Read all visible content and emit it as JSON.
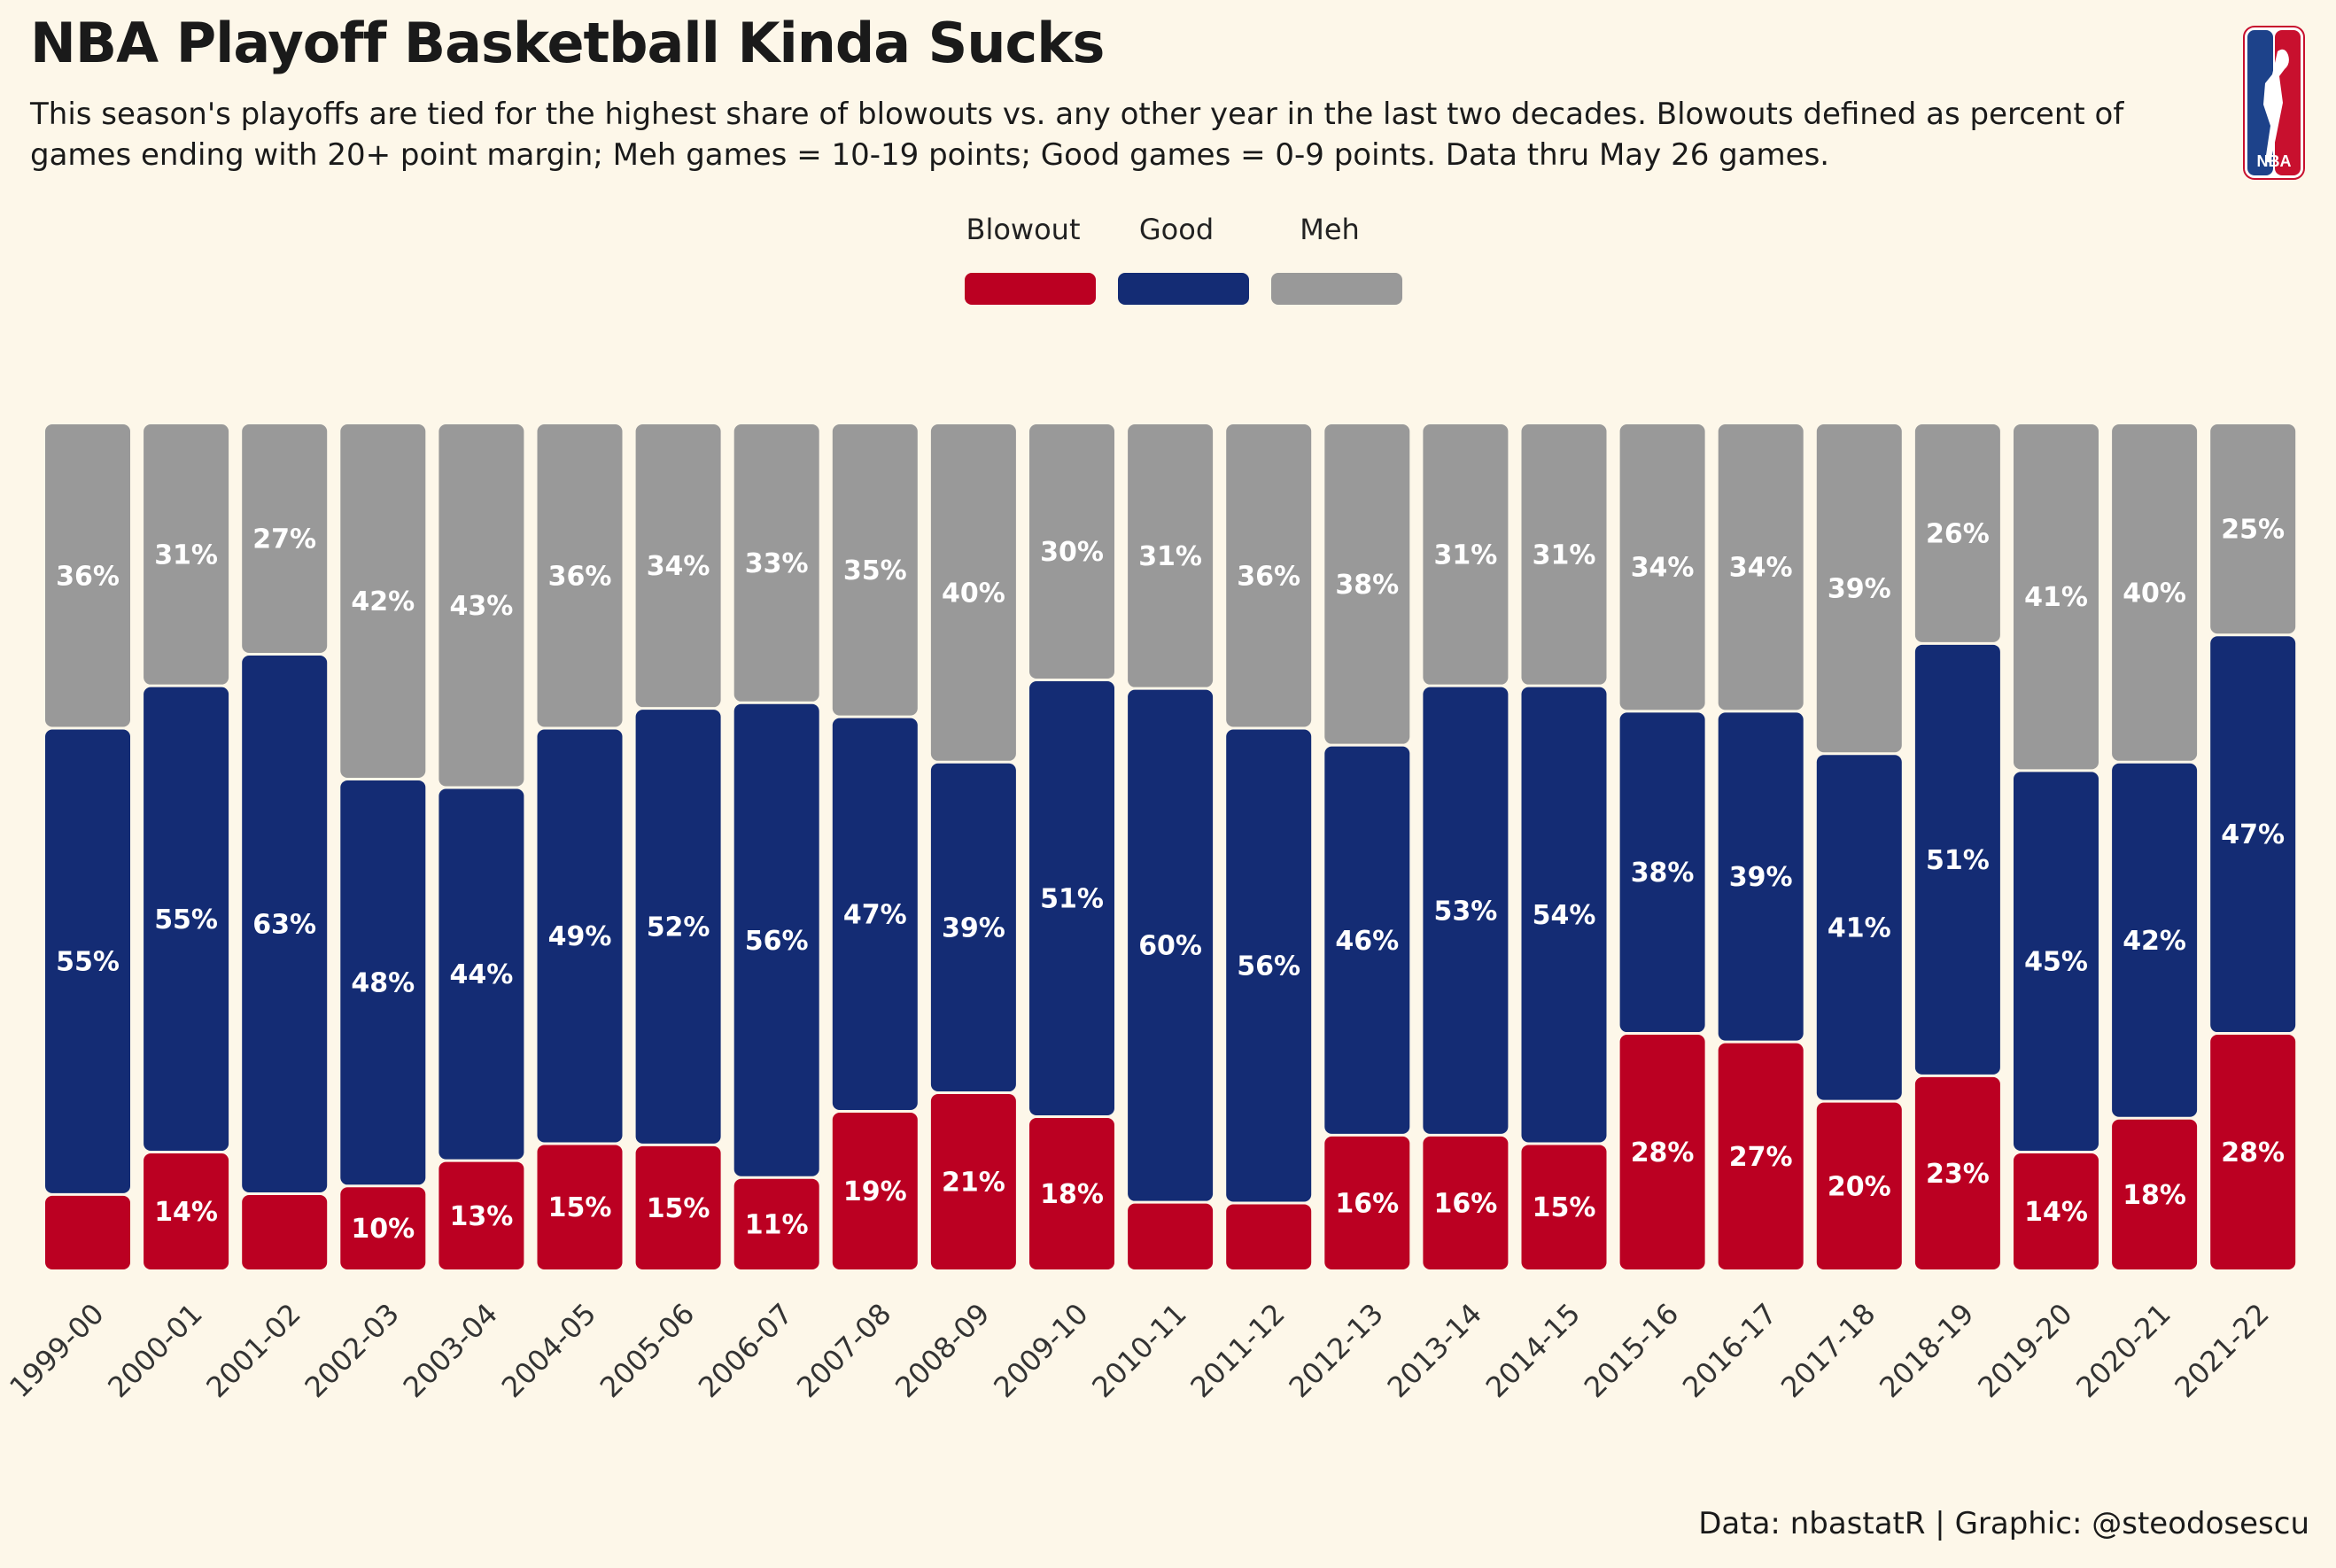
{
  "title": "NBA Playoff Basketball Kinda Sucks",
  "subtitle": "This season's playoffs are tied for the highest share of blowouts vs. any other year in the last two decades. Blowouts defined as percent of games ending with 20+ point margin; Meh games = 10-19 points; Good games = 0-9 points. Data thru May 26 games.",
  "source": "Data: nbastatR | Graphic: @steodosescu",
  "logo": {
    "icon": "nba-logo-icon",
    "text": "NBA"
  },
  "colors": {
    "background": "#fdf7e9",
    "blowout": "#bb0022",
    "good": "#142c74",
    "meh": "#999999"
  },
  "legend": [
    {
      "label": "Blowout",
      "color": "#bb0022"
    },
    {
      "label": "Good",
      "color": "#142c74"
    },
    {
      "label": "Meh",
      "color": "#999999"
    }
  ],
  "chart_data": {
    "type": "bar",
    "stacked": true,
    "categories": [
      "1999-00",
      "2000-01",
      "2001-02",
      "2002-03",
      "2003-04",
      "2004-05",
      "2005-06",
      "2006-07",
      "2007-08",
      "2008-09",
      "2009-10",
      "2010-11",
      "2011-12",
      "2012-13",
      "2013-14",
      "2014-15",
      "2015-16",
      "2016-17",
      "2017-18",
      "2018-19",
      "2019-20",
      "2020-21",
      "2021-22"
    ],
    "series": [
      {
        "name": "Blowout",
        "values": [
          9,
          14,
          9,
          10,
          13,
          15,
          15,
          11,
          19,
          21,
          18,
          8,
          8,
          16,
          16,
          15,
          28,
          27,
          20,
          23,
          14,
          18,
          28
        ],
        "labels": [
          "",
          "14%",
          "",
          "10%",
          "13%",
          "15%",
          "15%",
          "11%",
          "19%",
          "21%",
          "18%",
          "",
          "",
          "16%",
          "16%",
          "15%",
          "28%",
          "27%",
          "20%",
          "23%",
          "14%",
          "18%",
          "28%"
        ]
      },
      {
        "name": "Good",
        "values": [
          55,
          55,
          63,
          48,
          44,
          49,
          52,
          56,
          47,
          39,
          51,
          60,
          56,
          46,
          53,
          54,
          38,
          39,
          41,
          51,
          45,
          42,
          47
        ],
        "labels": [
          "55%",
          "55%",
          "63%",
          "48%",
          "44%",
          "49%",
          "52%",
          "56%",
          "47%",
          "39%",
          "51%",
          "60%",
          "56%",
          "46%",
          "53%",
          "54%",
          "38%",
          "39%",
          "41%",
          "51%",
          "45%",
          "42%",
          "47%"
        ]
      },
      {
        "name": "Meh",
        "values": [
          36,
          31,
          27,
          42,
          43,
          36,
          34,
          33,
          35,
          40,
          30,
          31,
          36,
          38,
          31,
          31,
          34,
          34,
          39,
          26,
          41,
          40,
          25
        ],
        "labels": [
          "36%",
          "31%",
          "27%",
          "42%",
          "43%",
          "36%",
          "34%",
          "33%",
          "35%",
          "40%",
          "30%",
          "31%",
          "36%",
          "38%",
          "31%",
          "31%",
          "34%",
          "34%",
          "39%",
          "26%",
          "41%",
          "40%",
          "25%"
        ]
      }
    ],
    "ylim": [
      0,
      100
    ],
    "grid": false,
    "legend_position": "top-center"
  }
}
